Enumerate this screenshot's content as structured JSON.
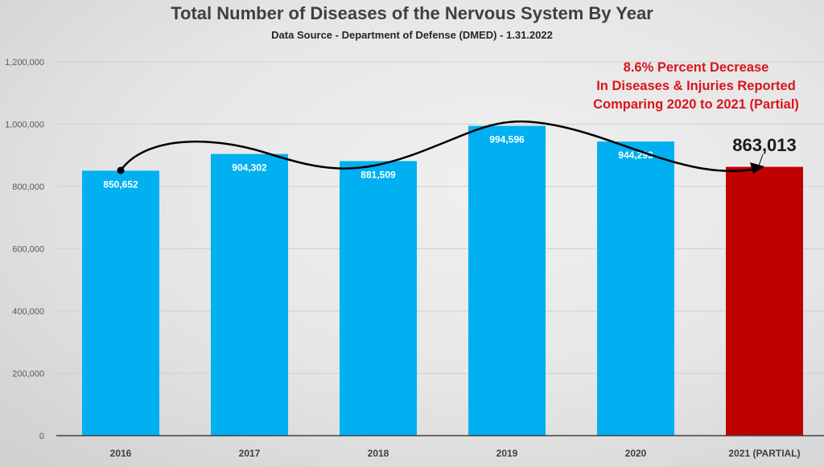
{
  "chart_data": {
    "type": "bar",
    "title": "Total Number of Diseases of the Nervous System By Year",
    "subtitle": "Data Source - Department of Defense (DMED) - 1.31.2022",
    "categories": [
      "2016",
      "2017",
      "2018",
      "2019",
      "2020",
      "2021 (PARTIAL)"
    ],
    "values": [
      850652,
      904302,
      881509,
      994596,
      944293,
      863013
    ],
    "data_labels": [
      "850,652",
      "904,302",
      "881,509",
      "994,596",
      "944,293",
      "863,013"
    ],
    "bar_colors": [
      "#00b0f0",
      "#00b0f0",
      "#00b0f0",
      "#00b0f0",
      "#00b0f0",
      "#c00000"
    ],
    "ylim": [
      0,
      1200000
    ],
    "yticks": [
      0,
      200000,
      400000,
      600000,
      800000,
      1000000,
      1200000
    ],
    "ytick_labels": [
      "0",
      "200,000",
      "400,000",
      "600,000",
      "800,000",
      "1,000,000",
      "1,200,000"
    ],
    "xlabel": "",
    "ylabel": "",
    "grid": true,
    "annotation": {
      "lines": [
        "8.6% Percent Decrease",
        "In Diseases & Injuries Reported",
        "Comparing 2020 to 2021 (Partial)"
      ],
      "color": "#d9161b"
    },
    "highlight_label": "863,013"
  }
}
